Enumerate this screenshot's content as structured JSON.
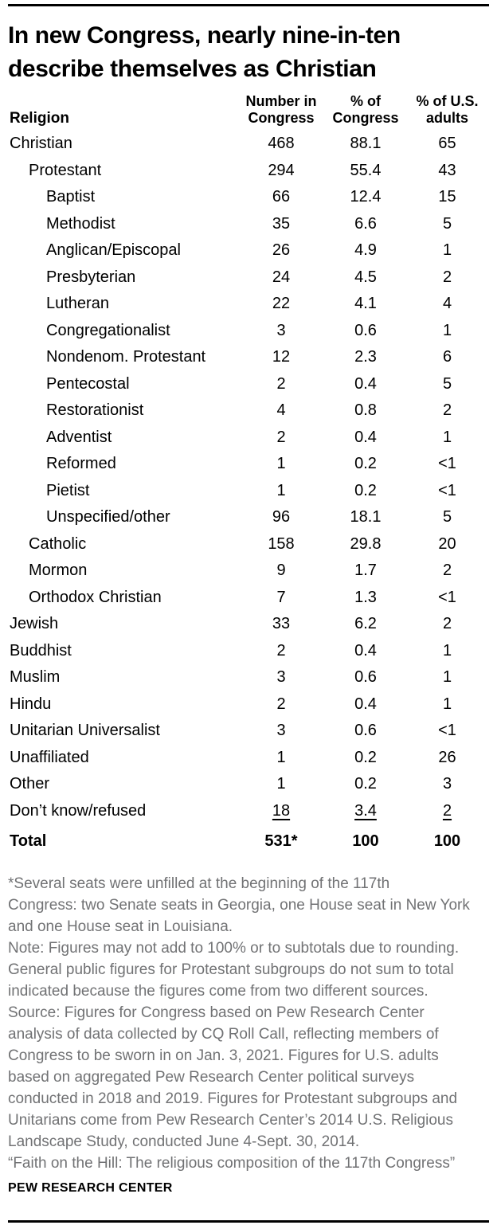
{
  "page": {
    "title": "In new Congress, nearly nine-in-ten describe themselves as Christian",
    "title_lines": [
      "In new Congress, nearly nine-in-ten",
      "describe themselves as Christian"
    ],
    "branding": "PEW RESEARCH CENTER"
  },
  "colors": {
    "text": "#000000",
    "note_gray": "#717274",
    "rule": "#000000",
    "background": "#ffffff"
  },
  "chart_data": {
    "type": "table",
    "title": "In new Congress, nearly nine-in-ten describe themselves as Christian",
    "columns": [
      "Religion",
      "Number in Congress",
      "% of Congress",
      "% of U.S. adults"
    ],
    "column_header_lines": {
      "religion": "Religion",
      "number": [
        "Number in",
        "Congress"
      ],
      "pct_congress": [
        "% of",
        "Congress"
      ],
      "pct_us": [
        "% of U.S.",
        "adults"
      ]
    },
    "rows": [
      {
        "religion": "Christian",
        "indent": 0,
        "number": "468",
        "pct_congress": "88.1",
        "pct_us": "65"
      },
      {
        "religion": "Protestant",
        "indent": 1,
        "number": "294",
        "pct_congress": "55.4",
        "pct_us": "43"
      },
      {
        "religion": "Baptist",
        "indent": 2,
        "number": "66",
        "pct_congress": "12.4",
        "pct_us": "15"
      },
      {
        "religion": "Methodist",
        "indent": 2,
        "number": "35",
        "pct_congress": "6.6",
        "pct_us": "5"
      },
      {
        "religion": "Anglican/Episcopal",
        "indent": 2,
        "number": "26",
        "pct_congress": "4.9",
        "pct_us": "1"
      },
      {
        "religion": "Presbyterian",
        "indent": 2,
        "number": "24",
        "pct_congress": "4.5",
        "pct_us": "2"
      },
      {
        "religion": "Lutheran",
        "indent": 2,
        "number": "22",
        "pct_congress": "4.1",
        "pct_us": "4"
      },
      {
        "religion": "Congregationalist",
        "indent": 2,
        "number": "3",
        "pct_congress": "0.6",
        "pct_us": "1"
      },
      {
        "religion": "Nondenom. Protestant",
        "indent": 2,
        "number": "12",
        "pct_congress": "2.3",
        "pct_us": "6"
      },
      {
        "religion": "Pentecostal",
        "indent": 2,
        "number": "2",
        "pct_congress": "0.4",
        "pct_us": "5"
      },
      {
        "religion": "Restorationist",
        "indent": 2,
        "number": "4",
        "pct_congress": "0.8",
        "pct_us": "2"
      },
      {
        "religion": "Adventist",
        "indent": 2,
        "number": "2",
        "pct_congress": "0.4",
        "pct_us": "1"
      },
      {
        "religion": "Reformed",
        "indent": 2,
        "number": "1",
        "pct_congress": "0.2",
        "pct_us": "<1"
      },
      {
        "religion": "Pietist",
        "indent": 2,
        "number": "1",
        "pct_congress": "0.2",
        "pct_us": "<1"
      },
      {
        "religion": "Unspecified/other",
        "indent": 2,
        "number": "96",
        "pct_congress": "18.1",
        "pct_us": "5"
      },
      {
        "religion": "Catholic",
        "indent": 1,
        "number": "158",
        "pct_congress": "29.8",
        "pct_us": "20"
      },
      {
        "religion": "Mormon",
        "indent": 1,
        "number": "9",
        "pct_congress": "1.7",
        "pct_us": "2"
      },
      {
        "religion": "Orthodox Christian",
        "indent": 1,
        "number": "7",
        "pct_congress": "1.3",
        "pct_us": "<1"
      },
      {
        "religion": "Jewish",
        "indent": 0,
        "number": "33",
        "pct_congress": "6.2",
        "pct_us": "2"
      },
      {
        "religion": "Buddhist",
        "indent": 0,
        "number": "2",
        "pct_congress": "0.4",
        "pct_us": "1"
      },
      {
        "religion": "Muslim",
        "indent": 0,
        "number": "3",
        "pct_congress": "0.6",
        "pct_us": "1"
      },
      {
        "religion": "Hindu",
        "indent": 0,
        "number": "2",
        "pct_congress": "0.4",
        "pct_us": "1"
      },
      {
        "religion": "Unitarian Universalist",
        "indent": 0,
        "number": "3",
        "pct_congress": "0.6",
        "pct_us": "<1"
      },
      {
        "religion": "Unaffiliated",
        "indent": 0,
        "number": "1",
        "pct_congress": "0.2",
        "pct_us": "26"
      },
      {
        "religion": "Other",
        "indent": 0,
        "number": "1",
        "pct_congress": "0.2",
        "pct_us": "3"
      },
      {
        "religion": "Don’t know/refused",
        "indent": 0,
        "number": "18",
        "pct_congress": "3.4",
        "pct_us": "2",
        "underline": true
      }
    ],
    "total_row": {
      "religion": "Total",
      "number": "531*",
      "pct_congress": "100",
      "pct_us": "100"
    }
  },
  "footnotes": {
    "lines": [
      "*Several seats were unfilled at the beginning of the 117th",
      "Congress: two Senate seats in Georgia, one House seat in New York",
      "and one House seat in Louisiana.",
      "Note: Figures may not add to 100% or to subtotals due to rounding.",
      "General public figures for Protestant subgroups do not sum to total",
      "indicated because the figures come from two different sources.",
      "Source: Figures for Congress based on Pew Research Center",
      "analysis of data collected by CQ Roll Call, reflecting members of",
      "Congress to be sworn in on Jan. 3, 2021. Figures for U.S. adults",
      "based on aggregated Pew Research Center political surveys",
      "conducted in 2018 and 2019. Figures for Protestant subgroups and",
      "Unitarians come from Pew Research Center’s 2014 U.S. Religious",
      "Landscape Study, conducted June 4-Sept. 30, 2014.",
      "“Faith on the Hill: The religious composition of the 117th Congress”"
    ]
  }
}
